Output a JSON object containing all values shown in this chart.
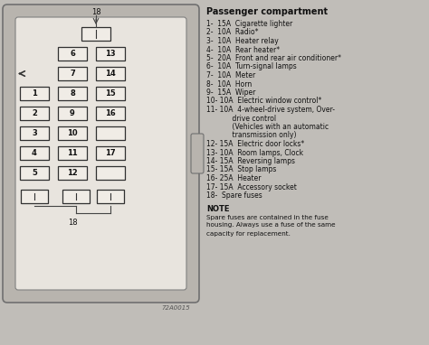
{
  "bg_color": "#c0bdb8",
  "box_outer_color": "#a8a49e",
  "box_inner_color": "#d8d4ce",
  "fuse_color": "#f0ece6",
  "fuse_edge": "#303030",
  "title": "Passenger compartment",
  "fuse_lines": [
    "1-  15A  Cigarette lighter",
    "2-  10A  Radio*",
    "3-  10A  Heater relay",
    "4-  10A  Rear heater*",
    "5-  20A  Front and rear air conditioner*",
    "6-  10A  Turn-signal lamps",
    "7-  10A  Meter",
    "8-  10A  Horn",
    "9-  15A  Wiper",
    "10- 10A  Electric window control*",
    "11- 10A  4-wheel-drive system, Over-",
    "            drive control",
    "            (Vehicles with an automatic",
    "            transmission only)",
    "12- 15A  Electric door locks*",
    "13- 10A  Room lamps, Clock",
    "14- 15A  Reversing lamps",
    "15- 15A  Stop lamps",
    "16- 25A  Heater",
    "17- 15A  Accessory socket",
    "18-  Spare fuses"
  ],
  "note_title": "NOTE",
  "note_body": "Spare fuses are contained in the fuse\nhousing. Always use a fuse of the same\ncapacity for replacement.",
  "diagram_code": "72A0015",
  "figsize": [
    4.74,
    3.82
  ],
  "dpi": 100
}
